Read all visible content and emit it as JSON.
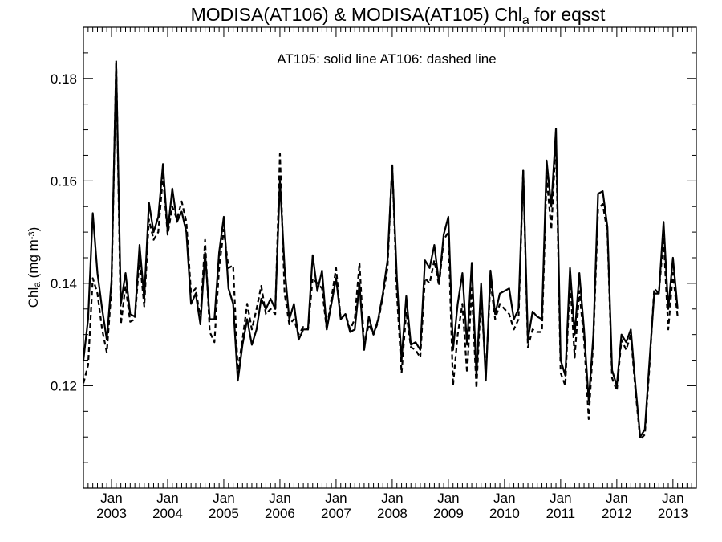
{
  "chart_data": {
    "type": "line",
    "title": {
      "main": "MODISA(AT106) & MODISA(AT105)  Chl",
      "sub": "a",
      "tail": " for eqsst"
    },
    "annotation": "AT105: solid line   AT106: dashed line",
    "ylabel": {
      "main": "Chl",
      "sub": "a",
      "unit_pre": " (mg m",
      "unit_sup": "-3",
      "unit_post": ")"
    },
    "ylim": [
      0.1,
      0.19
    ],
    "yticks": [
      0.12,
      0.14,
      0.16,
      0.18
    ],
    "ytick_labels": [
      "0.12",
      "0.14",
      "0.16",
      "0.18"
    ],
    "x_start": "2002-07",
    "xlim_months": [
      0,
      131
    ],
    "xticks": [
      {
        "month": 6,
        "top": "Jan",
        "bottom": "2003"
      },
      {
        "month": 18,
        "top": "Jan",
        "bottom": "2004"
      },
      {
        "month": 30,
        "top": "Jan",
        "bottom": "2005"
      },
      {
        "month": 42,
        "top": "Jan",
        "bottom": "2006"
      },
      {
        "month": 54,
        "top": "Jan",
        "bottom": "2007"
      },
      {
        "month": 66,
        "top": "Jan",
        "bottom": "2008"
      },
      {
        "month": 78,
        "top": "Jan",
        "bottom": "2009"
      },
      {
        "month": 90,
        "top": "Jan",
        "bottom": "2010"
      },
      {
        "month": 102,
        "top": "Jan",
        "bottom": "2011"
      },
      {
        "month": 114,
        "top": "Jan",
        "bottom": "2012"
      },
      {
        "month": 126,
        "top": "Jan",
        "bottom": "2013"
      }
    ],
    "series": [
      {
        "name": "AT105",
        "style": "solid",
        "color": "#000000",
        "values": [
          0.125,
          0.133,
          0.1537,
          0.142,
          0.135,
          0.129,
          0.1405,
          0.183,
          0.136,
          0.142,
          0.134,
          0.1335,
          0.1475,
          0.137,
          0.1558,
          0.15,
          0.153,
          0.1633,
          0.15,
          0.1585,
          0.152,
          0.154,
          0.15,
          0.136,
          0.138,
          0.132,
          0.146,
          0.133,
          0.133,
          0.146,
          0.153,
          0.139,
          0.136,
          0.121,
          0.128,
          0.133,
          0.128,
          0.131,
          0.137,
          0.135,
          0.137,
          0.135,
          0.16,
          0.143,
          0.133,
          0.136,
          0.129,
          0.131,
          0.131,
          0.1455,
          0.1385,
          0.1425,
          0.131,
          0.136,
          0.141,
          0.133,
          0.134,
          0.1305,
          0.131,
          0.14,
          0.127,
          0.1335,
          0.13,
          0.133,
          0.138,
          0.1445,
          0.163,
          0.141,
          0.125,
          0.1375,
          0.128,
          0.1285,
          0.127,
          0.1445,
          0.143,
          0.1475,
          0.14,
          0.1495,
          0.153,
          0.127,
          0.136,
          0.142,
          0.128,
          0.144,
          0.122,
          0.14,
          0.121,
          0.1425,
          0.134,
          0.138,
          0.1385,
          0.139,
          0.133,
          0.135,
          0.162,
          0.129,
          0.1345,
          0.1335,
          0.133,
          0.164,
          0.155,
          0.1702,
          0.125,
          0.122,
          0.143,
          0.13,
          0.142,
          0.131,
          0.117,
          0.13,
          0.1575,
          0.158,
          0.151,
          0.123,
          0.12,
          0.13,
          0.1285,
          0.131,
          0.12,
          0.11,
          0.1115,
          0.125,
          0.138,
          0.138,
          0.152,
          0.135,
          0.145,
          0.135
        ]
      },
      {
        "name": "AT106",
        "style": "dashed",
        "color": "#000000",
        "values": [
          0.1205,
          0.124,
          0.141,
          0.138,
          0.131,
          0.1265,
          0.139,
          0.1835,
          0.132,
          0.1395,
          0.1325,
          0.133,
          0.145,
          0.1355,
          0.1525,
          0.1485,
          0.15,
          0.161,
          0.1495,
          0.155,
          0.1525,
          0.156,
          0.152,
          0.138,
          0.139,
          0.133,
          0.1485,
          0.1305,
          0.1285,
          0.143,
          0.1505,
          0.143,
          0.1435,
          0.123,
          0.129,
          0.136,
          0.131,
          0.135,
          0.1395,
          0.134,
          0.135,
          0.134,
          0.1653,
          0.138,
          0.132,
          0.133,
          0.13,
          0.1315,
          0.131,
          0.141,
          0.14,
          0.139,
          0.131,
          0.137,
          0.143,
          0.133,
          0.134,
          0.131,
          0.133,
          0.144,
          0.128,
          0.132,
          0.13,
          0.1325,
          0.1375,
          0.143,
          0.1635,
          0.138,
          0.1225,
          0.1345,
          0.1275,
          0.127,
          0.1255,
          0.141,
          0.14,
          0.1445,
          0.1395,
          0.1485,
          0.15,
          0.12,
          0.13,
          0.136,
          0.1225,
          0.139,
          0.1195,
          0.138,
          0.122,
          0.1405,
          0.133,
          0.136,
          0.135,
          0.134,
          0.131,
          0.133,
          0.162,
          0.1275,
          0.131,
          0.1305,
          0.1305,
          0.161,
          0.1505,
          0.168,
          0.1225,
          0.12,
          0.141,
          0.1255,
          0.1385,
          0.129,
          0.1135,
          0.129,
          0.1545,
          0.1555,
          0.15,
          0.1215,
          0.119,
          0.129,
          0.127,
          0.13,
          0.119,
          0.1095,
          0.1105,
          0.124,
          0.139,
          0.138,
          0.149,
          0.131,
          0.142,
          0.1335
        ]
      }
    ],
    "grid": false,
    "legend": "none"
  }
}
